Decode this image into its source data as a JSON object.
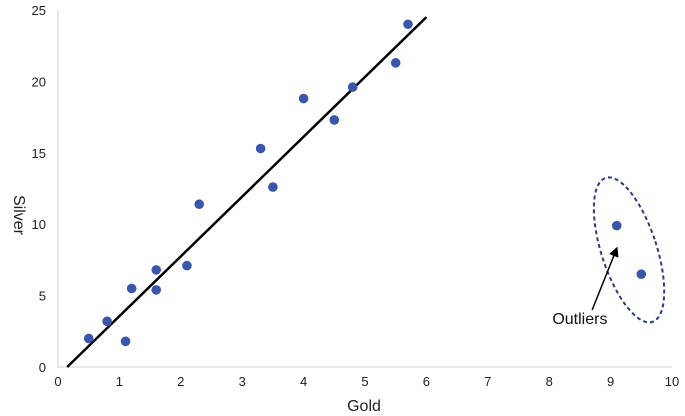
{
  "chart_data": {
    "type": "scatter",
    "title": "",
    "xlabel": "Gold",
    "ylabel": "Silver",
    "xlim": [
      0,
      10
    ],
    "ylim": [
      0,
      25
    ],
    "xticks": [
      0,
      1,
      2,
      3,
      4,
      5,
      6,
      7,
      8,
      9,
      10
    ],
    "yticks": [
      0,
      5,
      10,
      15,
      20,
      25
    ],
    "grid": false,
    "point_color": "#3a56a8",
    "line_color": "#000000",
    "points": [
      {
        "x": 0.5,
        "y": 2.0
      },
      {
        "x": 0.8,
        "y": 3.2
      },
      {
        "x": 1.1,
        "y": 1.8
      },
      {
        "x": 1.2,
        "y": 5.5
      },
      {
        "x": 1.6,
        "y": 6.8
      },
      {
        "x": 1.6,
        "y": 5.4
      },
      {
        "x": 2.1,
        "y": 7.1
      },
      {
        "x": 2.3,
        "y": 11.4
      },
      {
        "x": 3.3,
        "y": 15.3
      },
      {
        "x": 3.5,
        "y": 12.6
      },
      {
        "x": 4.0,
        "y": 18.8
      },
      {
        "x": 4.5,
        "y": 17.3
      },
      {
        "x": 4.8,
        "y": 19.6
      },
      {
        "x": 5.5,
        "y": 21.3
      },
      {
        "x": 5.7,
        "y": 24.0
      },
      {
        "x": 9.1,
        "y": 9.9
      },
      {
        "x": 9.5,
        "y": 6.5
      }
    ],
    "trendline": {
      "x": [
        0.15,
        6.0
      ],
      "y": [
        0.0,
        24.5
      ]
    },
    "annotation": {
      "text": "Outliers",
      "ellipse_center": {
        "x": 9.3,
        "y": 8.2
      },
      "ellipse_radius": {
        "x": 0.45,
        "y": 5.3
      },
      "arrow_from": {
        "x": 8.7,
        "y": 4.0
      },
      "arrow_to": {
        "x": 9.1,
        "y": 8.3
      },
      "text_at": {
        "x": 8.5,
        "y": 3.0
      }
    }
  }
}
